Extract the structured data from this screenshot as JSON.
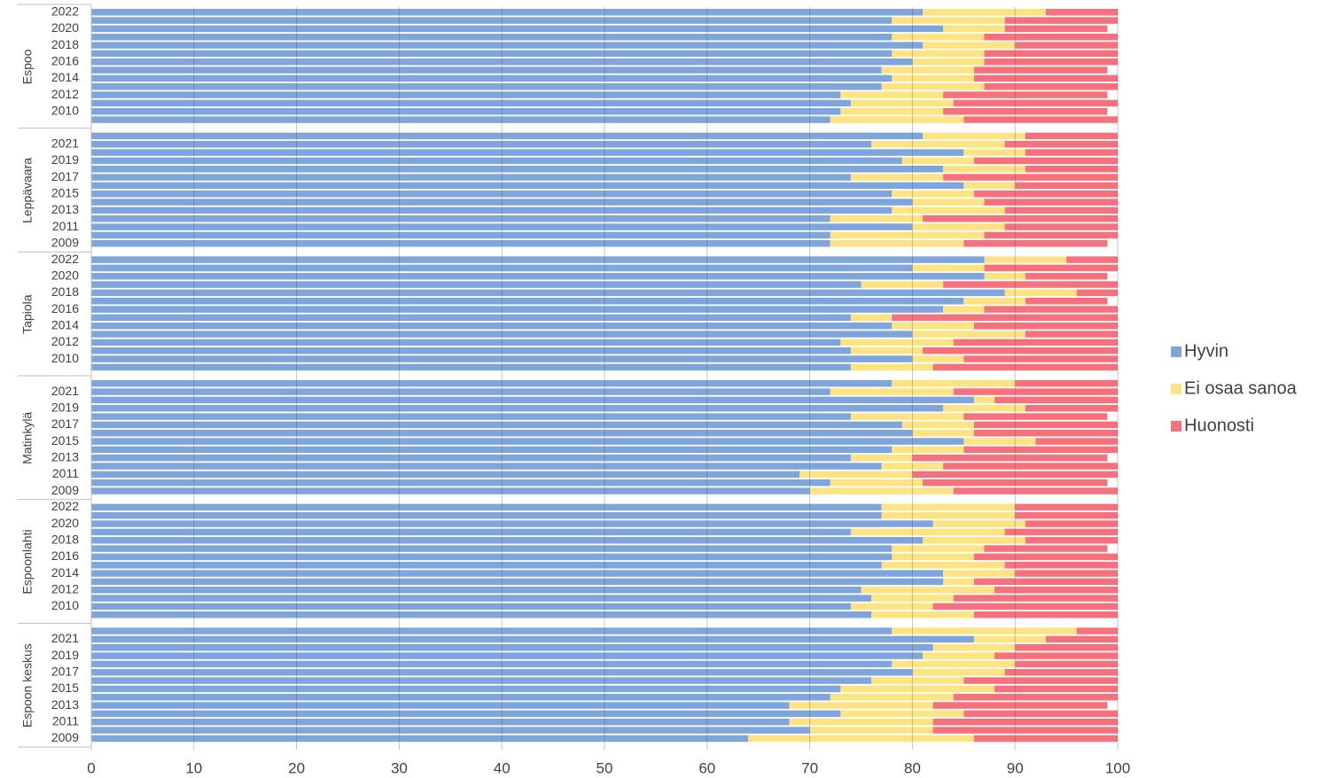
{
  "chart_data": {
    "type": "stacked-barh",
    "groups": [
      "Espoo",
      "Leppävaara",
      "Tapiola",
      "Matinkylä",
      "Espoonlahti",
      "Espoon keskus"
    ],
    "categories": [
      "2022",
      null,
      "2020",
      null,
      "2018",
      null,
      "2016",
      null,
      "2014",
      null,
      "2012",
      null,
      "2010",
      null,
      null,
      "2021",
      null,
      "2019",
      null,
      "2017",
      null,
      "2015",
      null,
      "2013",
      null,
      "2011",
      null,
      "2009",
      "2022",
      null,
      "2020",
      null,
      "2018",
      null,
      "2016",
      null,
      "2014",
      null,
      "2012",
      null,
      "2010",
      null,
      null,
      "2021",
      null,
      "2019",
      null,
      "2017",
      null,
      "2015",
      null,
      "2013",
      null,
      "2011",
      null,
      "2009",
      "2022",
      null,
      "2020",
      null,
      "2018",
      null,
      "2016",
      null,
      "2014",
      null,
      "2012",
      null,
      "2010",
      null,
      null,
      "2021",
      null,
      "2019",
      null,
      "2017",
      null,
      "2015",
      null,
      "2013",
      null,
      "2011",
      null,
      "2009"
    ],
    "series": [
      {
        "name": "Hyvin",
        "color": "#7ea6dc",
        "values": [
          81,
          78,
          83,
          78,
          81,
          78,
          80,
          77,
          78,
          77,
          73,
          74,
          73,
          72,
          81,
          76,
          85,
          79,
          83,
          74,
          85,
          78,
          80,
          78,
          72,
          80,
          72,
          72,
          87,
          80,
          87,
          75,
          89,
          85,
          83,
          74,
          78,
          80,
          73,
          74,
          80,
          74,
          78,
          72,
          86,
          83,
          74,
          79,
          80,
          85,
          78,
          74,
          77,
          69,
          72,
          70,
          77,
          77,
          82,
          74,
          81,
          78,
          78,
          77,
          83,
          83,
          75,
          76,
          74,
          76,
          78,
          86,
          82,
          81,
          78,
          80,
          76,
          73,
          72,
          68,
          73,
          68,
          70,
          64
        ]
      },
      {
        "name": "Ei osaa sanoa",
        "color": "#fde382",
        "values": [
          12,
          11,
          6,
          9,
          9,
          9,
          7,
          9,
          8,
          10,
          10,
          10,
          10,
          13,
          10,
          13,
          6,
          7,
          8,
          9,
          5,
          8,
          7,
          11,
          9,
          9,
          15,
          13,
          8,
          7,
          4,
          8,
          7,
          6,
          4,
          4,
          8,
          11,
          11,
          7,
          5,
          8,
          12,
          12,
          2,
          8,
          11,
          7,
          6,
          7,
          7,
          6,
          6,
          11,
          9,
          14,
          13,
          13,
          9,
          15,
          10,
          9,
          8,
          12,
          7,
          3,
          13,
          8,
          8,
          10,
          18,
          7,
          8,
          7,
          12,
          9,
          9,
          15,
          12,
          14,
          12,
          14,
          12,
          22
        ]
      },
      {
        "name": "Huonosti",
        "color": "#f7717c",
        "values": [
          7,
          11,
          10,
          13,
          10,
          13,
          13,
          13,
          14,
          13,
          16,
          16,
          16,
          15,
          9,
          11,
          9,
          14,
          9,
          17,
          10,
          14,
          13,
          11,
          19,
          11,
          13,
          14,
          5,
          13,
          8,
          17,
          4,
          8,
          13,
          22,
          14,
          9,
          16,
          19,
          15,
          18,
          10,
          16,
          12,
          9,
          14,
          14,
          14,
          8,
          15,
          19,
          17,
          20,
          18,
          16,
          10,
          10,
          9,
          11,
          9,
          12,
          14,
          11,
          10,
          14,
          12,
          16,
          18,
          14,
          4,
          7,
          10,
          12,
          10,
          11,
          15,
          12,
          16,
          17,
          15,
          18,
          18,
          14
        ]
      }
    ],
    "xlim": [
      0,
      100
    ],
    "xticks": [
      0,
      10,
      20,
      30,
      40,
      50,
      60,
      70,
      80,
      90,
      100
    ],
    "grid": true,
    "legend": "right"
  }
}
